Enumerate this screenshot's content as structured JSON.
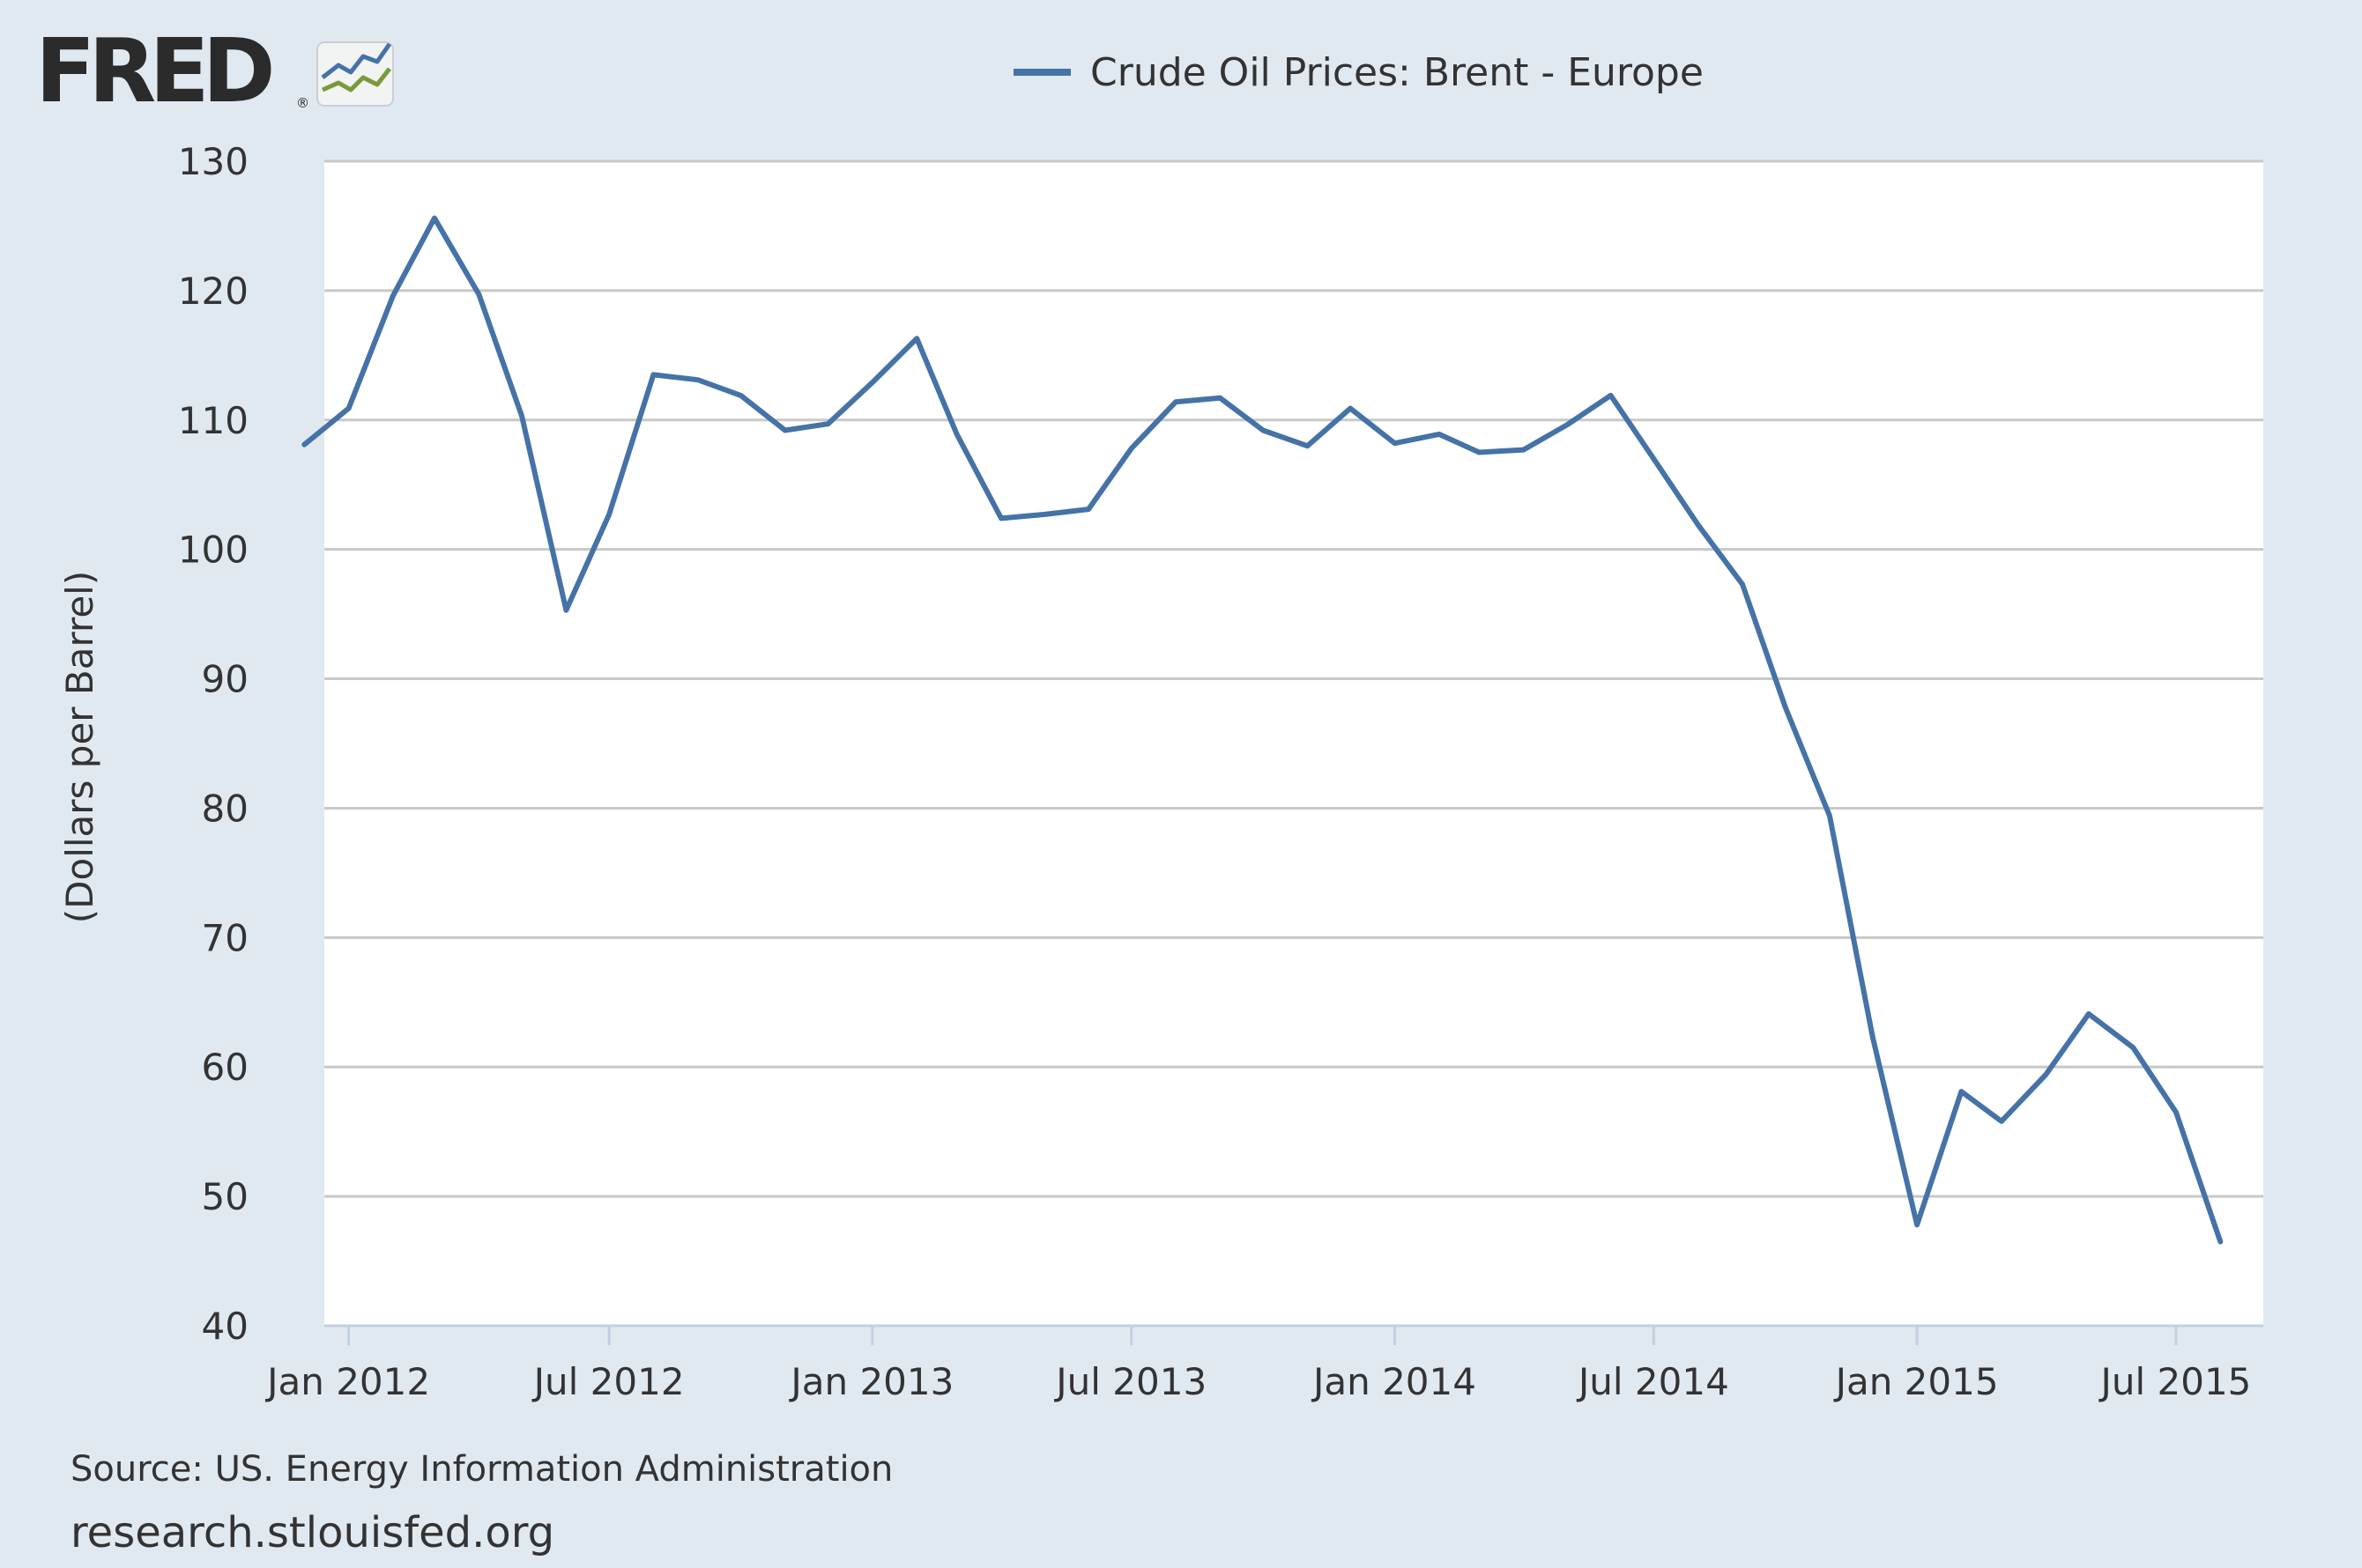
{
  "logo": {
    "text": "FRED",
    "registered": "®"
  },
  "source_text": "Source: US. Energy Information Administration",
  "site_text": "research.stlouisfed.org",
  "chart_data": {
    "type": "line",
    "title": "",
    "xlabel": "",
    "ylabel": "(Dollars per Barrel)",
    "ylim": [
      40,
      130
    ],
    "yticks": [
      40,
      50,
      60,
      70,
      80,
      90,
      100,
      110,
      120,
      130
    ],
    "xlim": [
      "2011-12-15",
      "2015-08-31"
    ],
    "xticks": [
      {
        "date": "2012-01-01",
        "label": "Jan 2012"
      },
      {
        "date": "2012-07-01",
        "label": "Jul 2012"
      },
      {
        "date": "2013-01-01",
        "label": "Jan 2013"
      },
      {
        "date": "2013-07-01",
        "label": "Jul 2013"
      },
      {
        "date": "2014-01-01",
        "label": "Jan 2014"
      },
      {
        "date": "2014-07-01",
        "label": "Jul 2014"
      },
      {
        "date": "2015-01-01",
        "label": "Jan 2015"
      },
      {
        "date": "2015-07-01",
        "label": "Jul 2015"
      }
    ],
    "grid": true,
    "legend": "top-center",
    "series": [
      {
        "name": "Crude Oil Prices: Brent - Europe",
        "color": "#4572a7",
        "x": [
          "2011-12-01",
          "2012-01-01",
          "2012-02-01",
          "2012-03-01",
          "2012-04-01",
          "2012-05-01",
          "2012-06-01",
          "2012-07-01",
          "2012-08-01",
          "2012-09-01",
          "2012-10-01",
          "2012-11-01",
          "2012-12-01",
          "2013-01-01",
          "2013-02-01",
          "2013-03-01",
          "2013-04-01",
          "2013-05-01",
          "2013-06-01",
          "2013-07-01",
          "2013-08-01",
          "2013-09-01",
          "2013-10-01",
          "2013-11-01",
          "2013-12-01",
          "2014-01-01",
          "2014-02-01",
          "2014-03-01",
          "2014-04-01",
          "2014-05-01",
          "2014-06-01",
          "2014-07-01",
          "2014-08-01",
          "2014-09-01",
          "2014-10-01",
          "2014-11-01",
          "2014-12-01",
          "2015-01-01",
          "2015-02-01",
          "2015-03-01",
          "2015-04-01",
          "2015-05-01",
          "2015-06-01",
          "2015-07-01",
          "2015-08-01"
        ],
        "values": [
          108.1,
          110.9,
          119.6,
          125.6,
          119.7,
          110.3,
          95.3,
          102.7,
          113.5,
          113.1,
          111.9,
          109.2,
          109.7,
          112.9,
          116.3,
          108.9,
          102.4,
          102.7,
          103.1,
          107.8,
          111.4,
          111.7,
          109.2,
          108.0,
          110.9,
          108.2,
          108.9,
          107.5,
          107.7,
          109.6,
          111.9,
          107.0,
          101.9,
          97.3,
          87.8,
          79.4,
          62.3,
          47.8,
          58.1,
          55.8,
          59.4,
          64.1,
          61.5,
          56.5,
          46.5
        ]
      }
    ]
  }
}
